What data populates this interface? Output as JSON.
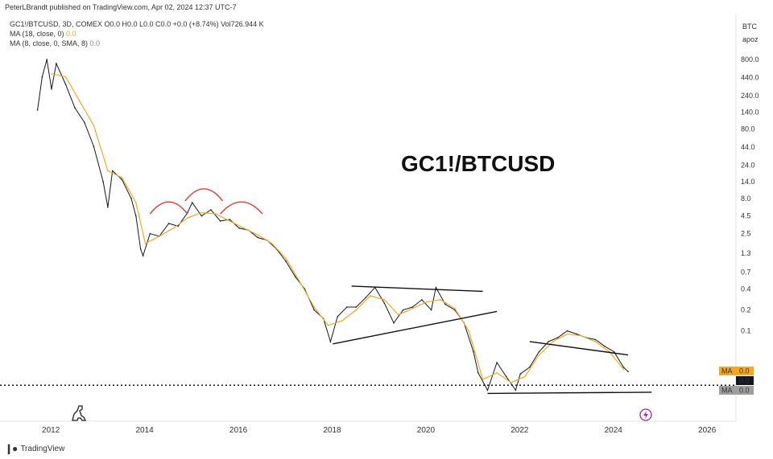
{
  "header": {
    "publisher": "PeterLBrandt published on TradingView.com, Apr 02, 2024 12:37 UTC-7"
  },
  "legend": {
    "symbol_line": "GC1!/BTCUSD, 3D, COMEX  O0.0  H0.0  L0.0  C0.0  +0.0 (+8.74%)  Vol726.944 K",
    "ma1_label": "MA (18, close, 0)",
    "ma1_value": "0.0",
    "ma2_label": "MA (8, close, 0, SMA, 8)",
    "ma2_value": "0.0"
  },
  "price_scale": {
    "currency": "BTC",
    "unit": "apoz",
    "badges": [
      {
        "label": "MA",
        "value": "0.0",
        "color": "#f5a623"
      },
      {
        "label": "",
        "value": "0.0",
        "color": "#131722"
      },
      {
        "label": "MA",
        "value": "0.0",
        "color": "#9e9e9e"
      }
    ]
  },
  "footer": {
    "brand": "TradingView"
  },
  "chart_data": {
    "type": "line",
    "title": "GC1!/BTCUSD",
    "y_scale": "log",
    "ylim": [
      0.0095,
      1100
    ],
    "y_ticks": [
      "800.0",
      "440.0",
      "240.0",
      "140.0",
      "80.0",
      "44.0",
      "24.0",
      "14.0",
      "8.0",
      "4.5",
      "2.5",
      "1.3",
      "0.7",
      "0.4",
      "0.2",
      "0.1"
    ],
    "x_ticks": [
      "2012",
      "2014",
      "2016",
      "2018",
      "2020",
      "2022",
      "2024",
      "2026"
    ],
    "xlim": [
      2010.9,
      2026.6
    ],
    "series": [
      {
        "name": "",
        "color": "#131722",
        "x": [
          2011.7,
          2011.8,
          2011.9,
          2012.0,
          2012.1,
          2012.3,
          2012.5,
          2012.7,
          2012.9,
          2013.1,
          2013.2,
          2013.3,
          2013.5,
          2013.7,
          2013.8,
          2013.9,
          2013.95,
          2014.1,
          2014.3,
          2014.5,
          2014.7,
          2014.9,
          2015.0,
          2015.2,
          2015.4,
          2015.6,
          2015.8,
          2016.0,
          2016.2,
          2016.4,
          2016.6,
          2016.8,
          2017.0,
          2017.2,
          2017.4,
          2017.6,
          2017.8,
          2017.95,
          2018.1,
          2018.3,
          2018.5,
          2018.7,
          2018.9,
          2019.1,
          2019.3,
          2019.5,
          2019.7,
          2019.9,
          2020.1,
          2020.2,
          2020.4,
          2020.6,
          2020.8,
          2021.0,
          2021.1,
          2021.3,
          2021.5,
          2021.7,
          2021.9,
          2022.0,
          2022.2,
          2022.4,
          2022.6,
          2022.8,
          2023.0,
          2023.2,
          2023.4,
          2023.6,
          2023.8,
          2024.0,
          2024.2,
          2024.3
        ],
        "y": [
          150,
          450,
          800,
          300,
          700,
          350,
          160,
          100,
          45,
          14,
          6,
          20,
          15,
          8,
          4.5,
          1.5,
          1.2,
          2.5,
          2.3,
          3.5,
          3.2,
          5.0,
          7.0,
          4.5,
          5.5,
          3.8,
          4.0,
          3.0,
          2.8,
          2.2,
          2.0,
          1.5,
          1.0,
          0.6,
          0.4,
          0.2,
          0.15,
          0.07,
          0.16,
          0.22,
          0.22,
          0.3,
          0.42,
          0.25,
          0.13,
          0.2,
          0.22,
          0.28,
          0.2,
          0.42,
          0.24,
          0.2,
          0.13,
          0.05,
          0.025,
          0.014,
          0.035,
          0.022,
          0.014,
          0.024,
          0.03,
          0.05,
          0.07,
          0.08,
          0.1,
          0.09,
          0.08,
          0.075,
          0.06,
          0.05,
          0.03,
          0.026
        ]
      },
      {
        "name": "",
        "color": "#f5a623",
        "x": [
          2012.0,
          2012.3,
          2012.6,
          2012.9,
          2013.2,
          2013.5,
          2013.8,
          2014.0,
          2014.3,
          2014.6,
          2014.9,
          2015.2,
          2015.5,
          2015.8,
          2016.1,
          2016.4,
          2016.7,
          2017.0,
          2017.3,
          2017.6,
          2017.9,
          2018.2,
          2018.5,
          2018.8,
          2019.1,
          2019.4,
          2019.7,
          2020.0,
          2020.3,
          2020.6,
          2020.9,
          2021.2,
          2021.5,
          2021.8,
          2022.1,
          2022.4,
          2022.7,
          2023.0,
          2023.3,
          2023.6,
          2023.9,
          2024.2
        ],
        "y": [
          500,
          450,
          200,
          90,
          20,
          16,
          7,
          1.8,
          2.3,
          3.0,
          4.2,
          5.0,
          4.8,
          3.8,
          3.0,
          2.4,
          1.8,
          1.1,
          0.5,
          0.22,
          0.12,
          0.14,
          0.2,
          0.32,
          0.28,
          0.17,
          0.21,
          0.26,
          0.28,
          0.21,
          0.1,
          0.02,
          0.025,
          0.018,
          0.022,
          0.045,
          0.07,
          0.09,
          0.085,
          0.07,
          0.05,
          0.028
        ]
      }
    ],
    "annotations": {
      "triangle_upper": {
        "x": [
          2018.4,
          2021.2
        ],
        "y": [
          0.44,
          0.37
        ]
      },
      "triangle_lower": {
        "x": [
          2018.0,
          2021.5
        ],
        "y": [
          0.065,
          0.19
        ]
      },
      "wedge_upper": {
        "x": [
          2022.2,
          2024.3
        ],
        "y": [
          0.07,
          0.045
        ]
      },
      "support": {
        "x": [
          2021.3,
          2024.8
        ],
        "y": [
          0.0126,
          0.0131
        ]
      },
      "dotted_level": {
        "y": 0.0165
      }
    }
  }
}
